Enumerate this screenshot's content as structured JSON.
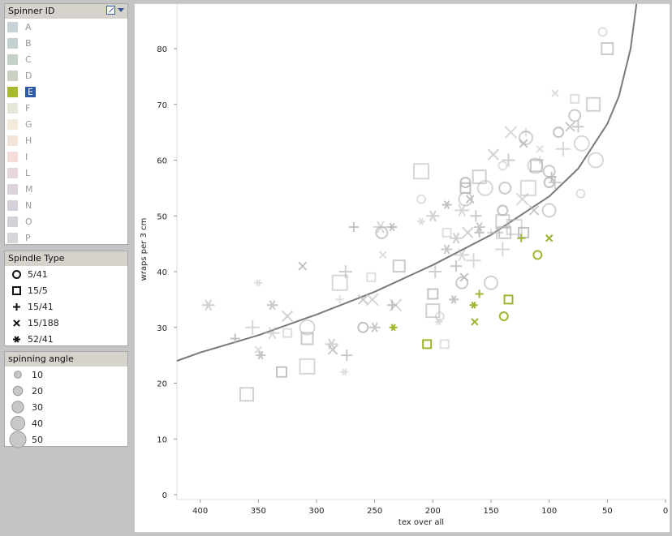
{
  "legend_spinner": {
    "title": "Spinner ID",
    "items": [
      {
        "label": "A",
        "color": "#c7d2d6"
      },
      {
        "label": "B",
        "color": "#c3d1d1"
      },
      {
        "label": "C",
        "color": "#c5d0c7"
      },
      {
        "label": "D",
        "color": "#cbd2c3"
      },
      {
        "label": "E",
        "color": "#a8b830",
        "selected": true
      },
      {
        "label": "F",
        "color": "#e5e8d8"
      },
      {
        "label": "G",
        "color": "#f3eada"
      },
      {
        "label": "H",
        "color": "#f4e3d7"
      },
      {
        "label": "I",
        "color": "#f4dcd8"
      },
      {
        "label": "L",
        "color": "#e6d6da"
      },
      {
        "label": "M",
        "color": "#dcd2dc"
      },
      {
        "label": "N",
        "color": "#d6d0da"
      },
      {
        "label": "O",
        "color": "#d3d1d8"
      },
      {
        "label": "P",
        "color": "#d4d6da"
      }
    ]
  },
  "legend_spindle": {
    "title": "Spindle Type",
    "items": [
      {
        "label": "5/41",
        "icon": "circle-icon"
      },
      {
        "label": "15/5",
        "icon": "square-icon"
      },
      {
        "label": "15/41",
        "icon": "plus-icon"
      },
      {
        "label": "15/188",
        "icon": "cross-icon"
      },
      {
        "label": "52/41",
        "icon": "asterisk-icon"
      }
    ]
  },
  "legend_angle": {
    "title": "spinning angle",
    "items": [
      {
        "label": "10",
        "value": 10
      },
      {
        "label": "20",
        "value": 20
      },
      {
        "label": "30",
        "value": 30
      },
      {
        "label": "40",
        "value": 40
      },
      {
        "label": "50",
        "value": 50
      }
    ]
  },
  "chart_data": {
    "type": "scatter",
    "xlabel": "tex over all",
    "ylabel": "wraps per 3 cm",
    "x_reversed": true,
    "xlim": [
      0,
      420
    ],
    "ylim": [
      0,
      88
    ],
    "xticks": [
      "400",
      "350",
      "300",
      "250",
      "200",
      "150",
      "100",
      "50",
      "0"
    ],
    "yticks": [
      "0",
      "10",
      "20",
      "30",
      "40",
      "50",
      "60",
      "70",
      "80"
    ],
    "grid": false,
    "trend_line": [
      [
        420,
        24
      ],
      [
        400,
        25.5
      ],
      [
        350,
        28.6
      ],
      [
        300,
        32.3
      ],
      [
        250,
        36.4
      ],
      [
        200,
        41.2
      ],
      [
        150,
        46.6
      ],
      [
        100,
        53.5
      ],
      [
        75,
        58.5
      ],
      [
        50,
        66.5
      ],
      [
        40,
        71.5
      ],
      [
        30,
        80
      ],
      [
        25,
        88
      ]
    ],
    "highlight_color": "#9fb52f",
    "other_color": "#b8b8b8",
    "series": [
      {
        "name": "E",
        "points": [
          {
            "x": 110,
            "y": 43,
            "s": "circle"
          },
          {
            "x": 139,
            "y": 32,
            "s": "circle"
          },
          {
            "x": 205,
            "y": 27,
            "s": "square"
          },
          {
            "x": 135,
            "y": 35,
            "s": "square"
          },
          {
            "x": 160,
            "y": 36,
            "s": "plus"
          },
          {
            "x": 124,
            "y": 46,
            "s": "plus"
          },
          {
            "x": 164,
            "y": 31,
            "s": "cross"
          },
          {
            "x": 100,
            "y": 46,
            "s": "cross"
          },
          {
            "x": 165,
            "y": 34,
            "s": "asterisk"
          },
          {
            "x": 234,
            "y": 30,
            "s": "asterisk"
          }
        ]
      },
      {
        "name": "other",
        "points": [
          {
            "x": 54,
            "y": 83,
            "s": "circle"
          },
          {
            "x": 78,
            "y": 68,
            "s": "circle"
          },
          {
            "x": 60,
            "y": 60,
            "s": "circle"
          },
          {
            "x": 92,
            "y": 65,
            "s": "circle"
          },
          {
            "x": 120,
            "y": 64,
            "s": "circle"
          },
          {
            "x": 140,
            "y": 59,
            "s": "circle"
          },
          {
            "x": 100,
            "y": 58,
            "s": "circle"
          },
          {
            "x": 112,
            "y": 59,
            "s": "circle"
          },
          {
            "x": 172,
            "y": 56,
            "s": "circle"
          },
          {
            "x": 172,
            "y": 53,
            "s": "circle"
          },
          {
            "x": 210,
            "y": 53,
            "s": "circle"
          },
          {
            "x": 138,
            "y": 55,
            "s": "circle"
          },
          {
            "x": 155,
            "y": 55,
            "s": "circle"
          },
          {
            "x": 140,
            "y": 51,
            "s": "circle"
          },
          {
            "x": 100,
            "y": 51,
            "s": "circle"
          },
          {
            "x": 73,
            "y": 54,
            "s": "circle"
          },
          {
            "x": 244,
            "y": 47,
            "s": "circle"
          },
          {
            "x": 308,
            "y": 30,
            "s": "circle"
          },
          {
            "x": 260,
            "y": 30,
            "s": "circle"
          },
          {
            "x": 150,
            "y": 38,
            "s": "circle"
          },
          {
            "x": 194,
            "y": 32,
            "s": "circle"
          },
          {
            "x": 175,
            "y": 38,
            "s": "circle"
          },
          {
            "x": 72,
            "y": 63,
            "s": "circle"
          },
          {
            "x": 100,
            "y": 56,
            "s": "circle"
          },
          {
            "x": 62,
            "y": 70,
            "s": "square"
          },
          {
            "x": 78,
            "y": 71,
            "s": "square"
          },
          {
            "x": 111,
            "y": 59,
            "s": "square"
          },
          {
            "x": 210,
            "y": 58,
            "s": "square"
          },
          {
            "x": 172,
            "y": 55,
            "s": "square"
          },
          {
            "x": 160,
            "y": 57,
            "s": "square"
          },
          {
            "x": 188,
            "y": 47,
            "s": "square"
          },
          {
            "x": 138,
            "y": 47,
            "s": "square"
          },
          {
            "x": 130,
            "y": 48,
            "s": "square"
          },
          {
            "x": 122,
            "y": 47,
            "s": "square"
          },
          {
            "x": 140,
            "y": 49,
            "s": "square"
          },
          {
            "x": 253,
            "y": 39,
            "s": "square"
          },
          {
            "x": 229,
            "y": 41,
            "s": "square"
          },
          {
            "x": 280,
            "y": 38,
            "s": "square"
          },
          {
            "x": 200,
            "y": 36,
            "s": "square"
          },
          {
            "x": 200,
            "y": 33,
            "s": "square"
          },
          {
            "x": 190,
            "y": 27,
            "s": "square"
          },
          {
            "x": 308,
            "y": 28,
            "s": "square"
          },
          {
            "x": 308,
            "y": 23,
            "s": "square"
          },
          {
            "x": 330,
            "y": 22,
            "s": "square"
          },
          {
            "x": 360,
            "y": 18,
            "s": "square"
          },
          {
            "x": 325,
            "y": 29,
            "s": "square"
          },
          {
            "x": 50,
            "y": 80,
            "s": "square"
          },
          {
            "x": 118,
            "y": 55,
            "s": "square"
          },
          {
            "x": 98,
            "y": 57,
            "s": "plus"
          },
          {
            "x": 95,
            "y": 56,
            "s": "plus"
          },
          {
            "x": 108,
            "y": 60,
            "s": "plus"
          },
          {
            "x": 180,
            "y": 41,
            "s": "plus"
          },
          {
            "x": 165,
            "y": 42,
            "s": "plus"
          },
          {
            "x": 160,
            "y": 47,
            "s": "plus"
          },
          {
            "x": 145,
            "y": 47,
            "s": "plus"
          },
          {
            "x": 150,
            "y": 47,
            "s": "plus"
          },
          {
            "x": 163,
            "y": 50,
            "s": "plus"
          },
          {
            "x": 140,
            "y": 44,
            "s": "plus"
          },
          {
            "x": 268,
            "y": 48,
            "s": "plus"
          },
          {
            "x": 275,
            "y": 40,
            "s": "plus"
          },
          {
            "x": 280,
            "y": 35,
            "s": "plus"
          },
          {
            "x": 274,
            "y": 25,
            "s": "plus"
          },
          {
            "x": 355,
            "y": 30,
            "s": "plus"
          },
          {
            "x": 370,
            "y": 28,
            "s": "plus"
          },
          {
            "x": 135,
            "y": 60,
            "s": "plus"
          },
          {
            "x": 120,
            "y": 65,
            "s": "plus"
          },
          {
            "x": 75,
            "y": 66,
            "s": "plus"
          },
          {
            "x": 88,
            "y": 62,
            "s": "plus"
          },
          {
            "x": 235,
            "y": 34,
            "s": "plus"
          },
          {
            "x": 198,
            "y": 40,
            "s": "plus"
          },
          {
            "x": 95,
            "y": 72,
            "s": "cross"
          },
          {
            "x": 82,
            "y": 66,
            "s": "cross"
          },
          {
            "x": 133,
            "y": 65,
            "s": "cross"
          },
          {
            "x": 122,
            "y": 63,
            "s": "cross"
          },
          {
            "x": 148,
            "y": 61,
            "s": "cross"
          },
          {
            "x": 108,
            "y": 62,
            "s": "cross"
          },
          {
            "x": 113,
            "y": 51,
            "s": "cross"
          },
          {
            "x": 123,
            "y": 53,
            "s": "cross"
          },
          {
            "x": 173,
            "y": 39,
            "s": "cross"
          },
          {
            "x": 170,
            "y": 47,
            "s": "cross"
          },
          {
            "x": 243,
            "y": 43,
            "s": "cross"
          },
          {
            "x": 260,
            "y": 35,
            "s": "cross"
          },
          {
            "x": 252,
            "y": 35,
            "s": "cross"
          },
          {
            "x": 312,
            "y": 41,
            "s": "cross"
          },
          {
            "x": 325,
            "y": 32,
            "s": "cross"
          },
          {
            "x": 350,
            "y": 26,
            "s": "cross"
          },
          {
            "x": 286,
            "y": 26,
            "s": "cross"
          },
          {
            "x": 232,
            "y": 34,
            "s": "cross"
          },
          {
            "x": 168,
            "y": 53,
            "s": "cross"
          },
          {
            "x": 393,
            "y": 34,
            "s": "asterisk"
          },
          {
            "x": 350,
            "y": 38,
            "s": "asterisk"
          },
          {
            "x": 338,
            "y": 34,
            "s": "asterisk"
          },
          {
            "x": 338,
            "y": 29,
            "s": "asterisk"
          },
          {
            "x": 348,
            "y": 25,
            "s": "asterisk"
          },
          {
            "x": 287,
            "y": 27,
            "s": "asterisk"
          },
          {
            "x": 276,
            "y": 22,
            "s": "asterisk"
          },
          {
            "x": 250,
            "y": 30,
            "s": "asterisk"
          },
          {
            "x": 245,
            "y": 48,
            "s": "asterisk"
          },
          {
            "x": 235,
            "y": 48,
            "s": "asterisk"
          },
          {
            "x": 200,
            "y": 50,
            "s": "asterisk"
          },
          {
            "x": 210,
            "y": 49,
            "s": "asterisk"
          },
          {
            "x": 188,
            "y": 44,
            "s": "asterisk"
          },
          {
            "x": 175,
            "y": 43,
            "s": "asterisk"
          },
          {
            "x": 182,
            "y": 35,
            "s": "asterisk"
          },
          {
            "x": 180,
            "y": 46,
            "s": "asterisk"
          },
          {
            "x": 195,
            "y": 31,
            "s": "asterisk"
          },
          {
            "x": 160,
            "y": 48,
            "s": "asterisk"
          },
          {
            "x": 175,
            "y": 51,
            "s": "asterisk"
          },
          {
            "x": 188,
            "y": 52,
            "s": "asterisk"
          }
        ]
      }
    ]
  }
}
